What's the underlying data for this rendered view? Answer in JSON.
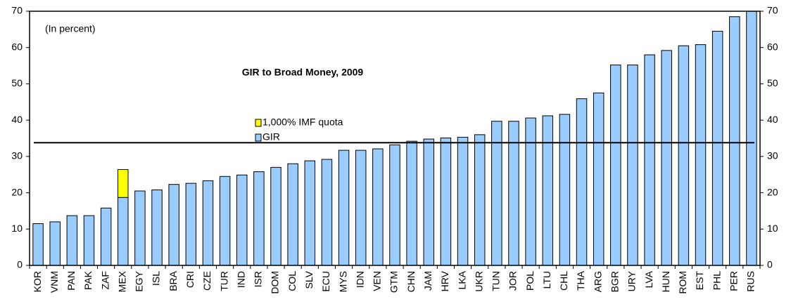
{
  "chart_data": {
    "type": "stacked-bar",
    "title": "GIR to Broad Money, 2009",
    "subtitle": "(In percent)",
    "categories": [
      "KOR",
      "VNM",
      "PAN",
      "PAK",
      "ZAF",
      "MEX",
      "EGY",
      "ISL",
      "BRA",
      "CRI",
      "CZE",
      "TUR",
      "IND",
      "ISR",
      "DOM",
      "COL",
      "SLV",
      "ECU",
      "MYS",
      "IDN",
      "VEN",
      "GTM",
      "CHN",
      "JAM",
      "HRV",
      "LKA",
      "UKR",
      "TUN",
      "JOR",
      "POL",
      "LTU",
      "CHL",
      "THA",
      "ARG",
      "BGR",
      "URY",
      "LVA",
      "HUN",
      "ROM",
      "EST",
      "PHL",
      "PER",
      "RUS"
    ],
    "series": [
      {
        "name": "GIR",
        "color": "#99ccff",
        "values": [
          11.5,
          12,
          13.7,
          13.7,
          15.8,
          18.7,
          20.5,
          20.8,
          22.3,
          22.6,
          23.3,
          24.5,
          24.9,
          25.8,
          27,
          28,
          28.8,
          29.2,
          31.7,
          31.7,
          32.1,
          33.2,
          34.2,
          34.8,
          35.1,
          35.3,
          36,
          39.7,
          39.7,
          40.6,
          41.2,
          41.6,
          45.9,
          47.5,
          55.2,
          55.2,
          58,
          59.2,
          60.5,
          60.8,
          64.5,
          68.5,
          70
        ]
      },
      {
        "name": "1,000% IMF quota",
        "color": "#ffff00",
        "values": [
          null,
          null,
          null,
          null,
          null,
          7.7,
          null,
          null,
          null,
          null,
          null,
          null,
          null,
          null,
          null,
          null,
          null,
          null,
          null,
          null,
          null,
          null,
          null,
          null,
          null,
          null,
          null,
          null,
          null,
          null,
          null,
          null,
          null,
          null,
          null,
          null,
          null,
          null,
          null,
          null,
          null,
          null,
          null
        ]
      }
    ],
    "reference_line": 33.8,
    "ylim": [
      0,
      70
    ],
    "yticks": [
      0,
      10,
      20,
      30,
      40,
      50,
      60,
      70
    ],
    "y2lim": [
      0,
      70
    ],
    "y2ticks": [
      0,
      10,
      20,
      30,
      40,
      50,
      60,
      70
    ]
  }
}
